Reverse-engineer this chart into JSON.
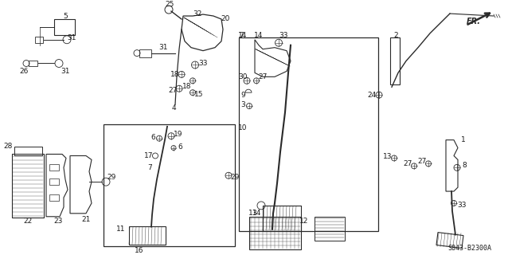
{
  "background_color": "#f0f0f0",
  "line_color": "#2a2a2a",
  "text_color": "#1a1a1a",
  "diagram_code": "S843-B2300A",
  "figsize": [
    6.38,
    3.2
  ],
  "dpi": 100
}
